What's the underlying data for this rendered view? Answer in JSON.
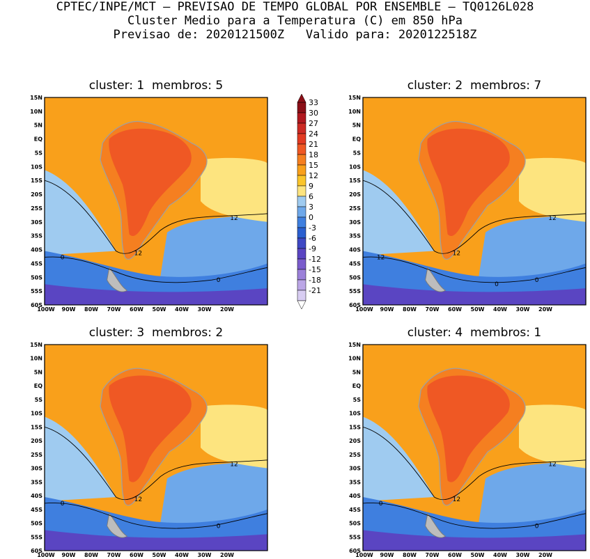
{
  "header": {
    "line1": "CPTEC/INPE/MCT – PREVISAO DE TEMPO GLOBAL POR ENSEMBLE – TQ0126L028",
    "line2": "Cluster Medio para a Temperatura (C) em 850 hPa",
    "line3": "Previsao de: 2020121500Z   Valido para: 2020122518Z"
  },
  "panels": [
    {
      "title": "cluster: 1  membros: 5",
      "contour_labels": [
        "12",
        "12",
        "0",
        "0"
      ]
    },
    {
      "title": "cluster: 2  membros: 7",
      "contour_labels": [
        "12",
        "12",
        "12",
        "0",
        "0"
      ]
    },
    {
      "title": "cluster: 3  membros: 2",
      "contour_labels": [
        "12",
        "12",
        "0",
        "0"
      ]
    },
    {
      "title": "cluster: 4  membros: 1",
      "contour_labels": [
        "12",
        "12",
        "0",
        "0"
      ]
    }
  ],
  "axes": {
    "lat_ticks": [
      "15N",
      "10N",
      "5N",
      "EQ",
      "5S",
      "10S",
      "15S",
      "20S",
      "25S",
      "30S",
      "35S",
      "40S",
      "45S",
      "50S",
      "55S",
      "60S"
    ],
    "lon_ticks": [
      "100W",
      "90W",
      "80W",
      "70W",
      "60W",
      "50W",
      "40W",
      "30W",
      "20W"
    ]
  },
  "colorbar": {
    "labels": [
      "33",
      "30",
      "27",
      "24",
      "21",
      "18",
      "15",
      "12",
      "9",
      "6",
      "3",
      "0",
      "-3",
      "-6",
      "-9",
      "-12",
      "-15",
      "-18",
      "-21"
    ],
    "colors": [
      "#8b0f17",
      "#b0181f",
      "#cc2a24",
      "#e23a22",
      "#ef5824",
      "#f57f20",
      "#f9a01b",
      "#fbc52a",
      "#fde47f",
      "#9fcbf0",
      "#6ea8ea",
      "#3f7fdf",
      "#2a5fd0",
      "#3e48c4",
      "#5a45c2",
      "#7a5ccc",
      "#9b80d9",
      "#bba6e6",
      "#d8cdf2"
    ]
  },
  "colors": {
    "warm_orange": "#f9a01b",
    "hot_orange": "#ef5824",
    "mid_orange": "#f57f20",
    "pale_yellow": "#fde47f",
    "light_blue": "#9fcbf0",
    "blue": "#6ea8ea",
    "deep_blue": "#3f7fdf",
    "purple": "#5a45c2",
    "coastline": "#a0a0a0"
  }
}
